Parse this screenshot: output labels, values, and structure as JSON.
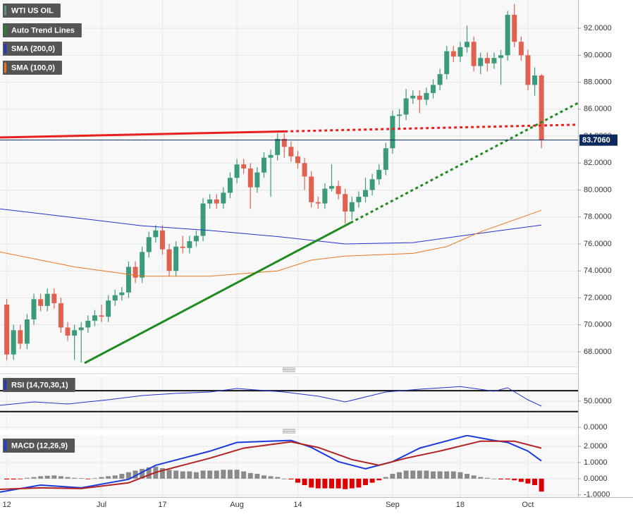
{
  "chart_data": [
    {
      "type": "candlestick",
      "xlim": [
        -1,
        84.4
      ],
      "xticks": [
        {
          "value": 0,
          "label": "12"
        },
        {
          "value": 14,
          "label": "Jul"
        },
        {
          "value": 23,
          "label": "17"
        },
        {
          "value": 34,
          "label": "Aug"
        },
        {
          "value": 43,
          "label": "14"
        },
        {
          "value": 57,
          "label": "Sep"
        },
        {
          "value": 67,
          "label": "18"
        },
        {
          "value": 77,
          "label": "Oct"
        }
      ],
      "ylim": [
        67,
        94.1
      ],
      "yticks": [
        {
          "value": 68,
          "label": "68.0000"
        },
        {
          "value": 70,
          "label": "70.0000"
        },
        {
          "value": 72,
          "label": "72.0000"
        },
        {
          "value": 74,
          "label": "74.0000"
        },
        {
          "value": 76,
          "label": "76.0000"
        },
        {
          "value": 78,
          "label": "78.0000"
        },
        {
          "value": 80,
          "label": "80.0000"
        },
        {
          "value": 82,
          "label": "82.0000"
        },
        {
          "value": 84,
          "label": "84.0000"
        },
        {
          "value": 86,
          "label": "86.0000"
        },
        {
          "value": 88,
          "label": "88.0000"
        },
        {
          "value": 90,
          "label": "90.0000"
        },
        {
          "value": 92,
          "label": "92.0000"
        }
      ],
      "grid": true,
      "candles": {
        "name": "WTI US OIL",
        "color": "#5f8f80",
        "up_color": "#3a9a7a",
        "down_color": "#e0614f",
        "open": [
          71.5,
          67.8,
          69.6,
          68.6,
          70.4,
          71.9,
          71.4,
          72.3,
          71.6,
          69.8,
          69.2,
          69.6,
          69.8,
          70.3,
          70.7,
          70.6,
          71.8,
          72.2,
          72.4,
          74.3,
          73.5,
          75.4,
          76.5,
          77.0,
          75.6,
          74.0,
          75.8,
          75.7,
          76.2,
          76.6,
          79.0,
          79.3,
          79.0,
          79.8,
          80.9,
          81.9,
          81.6,
          80.2,
          81.3,
          82.4,
          82.6,
          83.8,
          83.2,
          82.5,
          82.0,
          81.0,
          79.1,
          79.0,
          80.1,
          80.3,
          79.7,
          78.4,
          79.1,
          79.5,
          80.0,
          80.8,
          81.5,
          83.1,
          85.5,
          85.6,
          86.8,
          87.0,
          86.7,
          87.2,
          87.8,
          88.6,
          90.3,
          89.9,
          90.6,
          91.0,
          89.2,
          89.8,
          89.4,
          89.8,
          90.0,
          93.0,
          91.0,
          90.0,
          87.8,
          88.5
        ],
        "high": [
          71.9,
          70.0,
          70.0,
          70.8,
          72.3,
          72.3,
          72.7,
          72.7,
          72.0,
          70.2,
          70.0,
          70.2,
          70.7,
          71.1,
          71.5,
          72.2,
          72.6,
          72.8,
          74.7,
          74.7,
          75.8,
          76.9,
          77.4,
          77.4,
          76.0,
          76.2,
          76.6,
          76.6,
          77.0,
          79.4,
          79.7,
          79.7,
          80.2,
          81.3,
          82.3,
          82.3,
          82.0,
          81.7,
          82.8,
          83.0,
          84.2,
          84.2,
          83.6,
          82.9,
          82.4,
          81.4,
          79.5,
          80.5,
          81.9,
          80.7,
          80.1,
          79.5,
          79.9,
          80.9,
          81.2,
          81.9,
          83.5,
          85.9,
          86.0,
          87.5,
          87.4,
          87.4,
          87.6,
          88.2,
          89.0,
          90.7,
          90.7,
          91.0,
          92.2,
          91.4,
          90.2,
          90.2,
          90.2,
          90.4,
          93.3,
          93.8,
          91.4,
          90.4,
          89.1,
          88.6
        ],
        "low": [
          67.4,
          67.4,
          68.2,
          68.2,
          70.0,
          71.0,
          71.0,
          71.2,
          69.4,
          68.8,
          67.4,
          67.2,
          69.4,
          69.9,
          70.2,
          70.2,
          71.4,
          71.8,
          72.0,
          73.1,
          73.1,
          75.0,
          76.1,
          75.2,
          73.6,
          73.6,
          75.3,
          75.3,
          75.8,
          76.2,
          78.6,
          78.6,
          78.6,
          79.4,
          80.5,
          81.2,
          78.6,
          79.8,
          80.9,
          79.5,
          82.2,
          82.4,
          82.1,
          81.6,
          80.0,
          78.7,
          78.6,
          78.6,
          79.9,
          79.3,
          77.5,
          77.8,
          78.7,
          79.1,
          79.6,
          80.4,
          81.1,
          82.7,
          84.6,
          85.2,
          86.4,
          85.7,
          86.3,
          86.8,
          87.4,
          88.2,
          89.5,
          89.5,
          90.2,
          88.8,
          88.6,
          88.8,
          89.0,
          87.8,
          89.6,
          90.6,
          89.6,
          87.4,
          87.0,
          83.1
        ],
        "close": [
          67.8,
          69.6,
          68.6,
          70.4,
          71.9,
          71.4,
          72.3,
          71.6,
          69.8,
          69.2,
          69.6,
          69.8,
          70.3,
          70.7,
          70.6,
          71.8,
          72.2,
          72.4,
          74.3,
          73.5,
          75.4,
          76.5,
          77.0,
          75.6,
          74.0,
          75.8,
          75.7,
          76.2,
          76.6,
          79.0,
          79.3,
          79.0,
          79.8,
          80.9,
          81.9,
          81.6,
          80.2,
          81.3,
          82.4,
          82.6,
          83.8,
          83.2,
          82.5,
          82.0,
          81.0,
          79.1,
          79.0,
          80.1,
          80.3,
          79.7,
          78.4,
          79.1,
          79.5,
          80.0,
          80.8,
          81.5,
          83.1,
          85.5,
          85.6,
          86.8,
          87.0,
          86.7,
          87.2,
          87.8,
          88.6,
          90.3,
          89.9,
          90.6,
          91.0,
          89.2,
          89.8,
          89.4,
          89.8,
          90.0,
          93.0,
          91.0,
          90.0,
          87.8,
          88.5,
          83.706
        ]
      },
      "last_price": {
        "value": 83.706,
        "label": "83.7060",
        "color": "#0d2a5c"
      },
      "trend_lines": {
        "name": "Auto Trend Lines",
        "color": "#1f8a1f",
        "dotted_from": 1,
        "lines": [
          {
            "color": "#e8201e",
            "x": [
              -1,
              41.1,
              84.4
            ],
            "values": [
              83.9,
              84.35,
              84.85
            ]
          },
          {
            "color": "#1f8a1f",
            "x": [
              11.5,
              50.8,
              84.4
            ],
            "values": [
              67.16,
              77.57,
              86.46
            ]
          }
        ]
      },
      "series": [
        {
          "name": "SMA (200,0)",
          "color": "#2233cc",
          "x": [
            -1,
            10,
            20,
            30,
            40,
            50,
            60,
            70,
            79
          ],
          "values": [
            78.6,
            77.95,
            77.35,
            77.0,
            76.55,
            76.0,
            76.1,
            76.8,
            77.4
          ]
        },
        {
          "name": "SMA (100,0)",
          "color": "#e87722",
          "x": [
            -1,
            10,
            20,
            30,
            40,
            45,
            50,
            55,
            60,
            65,
            70,
            79
          ],
          "values": [
            75.4,
            74.3,
            73.6,
            73.6,
            74.0,
            74.8,
            75.1,
            75.2,
            75.3,
            75.8,
            76.9,
            78.5
          ]
        }
      ]
    },
    {
      "type": "line",
      "title": "RSI (14,70,30,1)",
      "color": "#2233cc",
      "ylim": [
        -5.4,
        98.6
      ],
      "yticks": [
        {
          "value": 50,
          "label": "50.0000"
        },
        {
          "value": 0,
          "label": "0.0000"
        }
      ],
      "levels": [
        70,
        30
      ],
      "series": [
        {
          "color": "#2233cc",
          "x": [
            -1,
            4,
            9,
            15,
            20,
            25,
            30,
            34,
            41,
            46,
            50,
            56,
            61,
            67,
            72,
            74,
            77,
            79
          ],
          "values": [
            42,
            48.6,
            44.6,
            52.7,
            60.8,
            65,
            67.6,
            74.3,
            67.6,
            59.5,
            48.6,
            67.6,
            73,
            78,
            69,
            75.7,
            52.7,
            40.5
          ]
        }
      ]
    },
    {
      "type": "macd",
      "title": "MACD (12,26,9)",
      "color": "#1a3adf",
      "ylim": [
        -1.14,
        2.7
      ],
      "yticks": [
        {
          "value": 2,
          "label": "2.0000"
        },
        {
          "value": 1,
          "label": "1.0000"
        },
        {
          "value": 0,
          "label": "0.0000"
        },
        {
          "value": -1,
          "label": "-1.0000"
        }
      ],
      "series": [
        {
          "color": "#1a3adf",
          "x": [
            -1,
            5,
            11,
            18,
            22,
            30,
            34,
            42,
            45,
            49,
            53,
            57,
            61,
            68,
            72,
            74,
            77,
            79
          ],
          "values": [
            -0.83,
            -0.4,
            -0.57,
            -0.04,
            0.83,
            1.7,
            2.24,
            2.37,
            1.93,
            1.05,
            0.61,
            1.05,
            1.89,
            2.67,
            2.37,
            2.24,
            1.71,
            1.1
          ]
        },
        {
          "color": "#b22222",
          "x": [
            -1,
            5,
            11,
            18,
            22,
            30,
            35,
            42,
            46,
            51,
            55,
            59,
            64,
            70,
            75,
            79
          ],
          "values": [
            -0.66,
            -0.57,
            -0.61,
            -0.26,
            0.39,
            1.27,
            1.89,
            2.28,
            1.93,
            1.18,
            0.83,
            1.27,
            1.71,
            2.32,
            2.32,
            1.89
          ]
        }
      ],
      "histogram": {
        "pos_color": "#8a8a8a",
        "neg_color": "#e00000",
        "values": [
          -0.05,
          -0.05,
          -0.03,
          0.05,
          0.1,
          0.15,
          0.18,
          0.2,
          0.15,
          0.1,
          0.05,
          0.03,
          -0.02,
          0.03,
          0.1,
          0.15,
          0.2,
          0.3,
          0.4,
          0.5,
          0.6,
          0.7,
          0.75,
          0.65,
          0.55,
          0.5,
          0.45,
          0.45,
          0.4,
          0.5,
          0.5,
          0.5,
          0.55,
          0.55,
          0.55,
          0.45,
          0.35,
          0.3,
          0.2,
          0.15,
          0.1,
          0.0,
          -0.05,
          -0.25,
          -0.4,
          -0.55,
          -0.6,
          -0.6,
          -0.6,
          -0.6,
          -0.65,
          -0.6,
          -0.55,
          -0.4,
          -0.25,
          -0.1,
          0.1,
          0.3,
          0.4,
          0.5,
          0.5,
          0.5,
          0.5,
          0.45,
          0.45,
          0.45,
          0.45,
          0.4,
          0.3,
          0.2,
          0.1,
          0.05,
          0.0,
          -0.05,
          -0.05,
          -0.1,
          -0.2,
          -0.3,
          -0.4,
          -0.8
        ]
      }
    }
  ]
}
